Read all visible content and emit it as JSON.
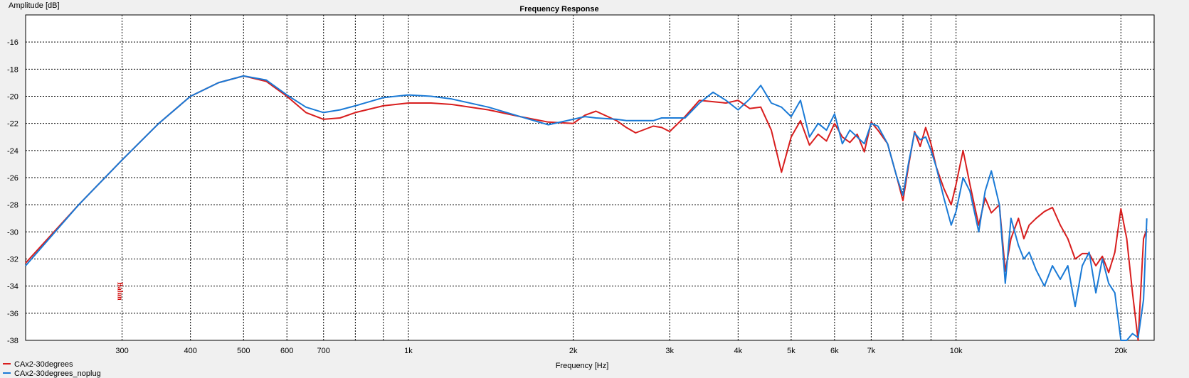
{
  "chart_data": {
    "type": "line",
    "title": "Frequency Response",
    "xlabel": "Frequency [Hz]",
    "ylabel": "Amplitude [dB]",
    "xscale": "log",
    "xlim": [
      200,
      23000
    ],
    "ylim": [
      -38,
      -14
    ],
    "grid": true,
    "legend": "bottom-left",
    "colors": {
      "background": "#f0f0f0",
      "plot_bg": "#ffffff",
      "grid": "#000000"
    },
    "x_ticks": [
      {
        "value": 300,
        "label": "300"
      },
      {
        "value": 400,
        "label": "400"
      },
      {
        "value": 500,
        "label": "500"
      },
      {
        "value": 600,
        "label": "600"
      },
      {
        "value": 700,
        "label": "700"
      },
      {
        "value": 1000,
        "label": "1k"
      },
      {
        "value": 2000,
        "label": "2k"
      },
      {
        "value": 3000,
        "label": "3k"
      },
      {
        "value": 4000,
        "label": "4k"
      },
      {
        "value": 5000,
        "label": "5k"
      },
      {
        "value": 6000,
        "label": "6k"
      },
      {
        "value": 7000,
        "label": "7k"
      },
      {
        "value": 10000,
        "label": "10k"
      },
      {
        "value": 20000,
        "label": "20k"
      }
    ],
    "x_minor": [
      800,
      900,
      8000,
      9000
    ],
    "y_ticks": [
      -16,
      -18,
      -20,
      -22,
      -24,
      -26,
      -28,
      -30,
      -32,
      -34,
      -36,
      -38
    ],
    "annotations": [
      {
        "x": 300,
        "text": "Balun"
      }
    ],
    "series": [
      {
        "name": "CAx2-30degrees",
        "color": "#d81e1e",
        "x": [
          200,
          250,
          300,
          350,
          400,
          450,
          500,
          550,
          600,
          650,
          700,
          750,
          800,
          900,
          1000,
          1100,
          1200,
          1400,
          1600,
          1800,
          2000,
          2100,
          2200,
          2400,
          2500,
          2600,
          2800,
          2900,
          3000,
          3200,
          3400,
          3600,
          3800,
          4000,
          4200,
          4400,
          4600,
          4800,
          5000,
          5200,
          5400,
          5600,
          5800,
          6000,
          6200,
          6400,
          6600,
          6800,
          7000,
          7200,
          7500,
          7800,
          8000,
          8200,
          8400,
          8600,
          8800,
          9000,
          9200,
          9500,
          9800,
          10000,
          10300,
          10600,
          11000,
          11300,
          11600,
          12000,
          12300,
          12600,
          13000,
          13300,
          13600,
          14000,
          14500,
          15000,
          15500,
          16000,
          16500,
          17000,
          17500,
          18000,
          18500,
          19000,
          19500,
          20000,
          20500,
          21000,
          21500,
          22000,
          22300
        ],
        "y": [
          -32.3,
          -28.0,
          -24.7,
          -22.0,
          -20.0,
          -19.0,
          -18.5,
          -18.9,
          -20.0,
          -21.2,
          -21.7,
          -21.6,
          -21.2,
          -20.7,
          -20.5,
          -20.5,
          -20.6,
          -21.0,
          -21.5,
          -21.9,
          -22.0,
          -21.4,
          -21.1,
          -21.8,
          -22.3,
          -22.7,
          -22.2,
          -22.3,
          -22.6,
          -21.5,
          -20.3,
          -20.4,
          -20.5,
          -20.3,
          -20.9,
          -20.8,
          -22.5,
          -25.6,
          -23.0,
          -21.8,
          -23.6,
          -22.8,
          -23.3,
          -22.0,
          -23.0,
          -23.4,
          -22.8,
          -24.1,
          -21.9,
          -22.5,
          -23.5,
          -26.0,
          -27.7,
          -25.0,
          -22.6,
          -23.7,
          -22.3,
          -23.5,
          -25.2,
          -26.8,
          -28.0,
          -26.5,
          -24.0,
          -26.5,
          -29.5,
          -27.5,
          -28.6,
          -28.0,
          -32.9,
          -30.5,
          -29.0,
          -30.5,
          -29.5,
          -29.0,
          -28.5,
          -28.2,
          -29.5,
          -30.5,
          -32.0,
          -31.6,
          -31.6,
          -32.5,
          -31.8,
          -33.0,
          -31.5,
          -28.3,
          -30.5,
          -34.5,
          -38.0,
          -30.5,
          -29.8
        ],
        "show_line": true
      },
      {
        "name": "CAx2-30degrees_noplug",
        "color": "#1a7ad6",
        "x": [
          200,
          250,
          300,
          350,
          400,
          450,
          500,
          550,
          600,
          650,
          700,
          750,
          800,
          900,
          1000,
          1100,
          1200,
          1400,
          1600,
          1800,
          2000,
          2100,
          2200,
          2400,
          2500,
          2600,
          2800,
          2900,
          3000,
          3200,
          3400,
          3600,
          3800,
          4000,
          4200,
          4400,
          4600,
          4800,
          5000,
          5200,
          5400,
          5600,
          5800,
          6000,
          6200,
          6400,
          6600,
          6800,
          7000,
          7200,
          7500,
          7800,
          8000,
          8200,
          8400,
          8600,
          8800,
          9000,
          9200,
          9500,
          9800,
          10000,
          10300,
          10600,
          11000,
          11300,
          11600,
          12000,
          12300,
          12600,
          13000,
          13300,
          13600,
          14000,
          14500,
          15000,
          15500,
          16000,
          16500,
          17000,
          17500,
          18000,
          18500,
          19000,
          19500,
          20000,
          20500,
          21000,
          21500,
          22000,
          22300
        ],
        "y": [
          -32.5,
          -28.0,
          -24.7,
          -22.0,
          -20.0,
          -19.0,
          -18.5,
          -18.8,
          -19.9,
          -20.8,
          -21.2,
          -21.0,
          -20.7,
          -20.1,
          -19.9,
          -20.0,
          -20.2,
          -20.8,
          -21.5,
          -22.1,
          -21.7,
          -21.5,
          -21.6,
          -21.7,
          -21.8,
          -21.8,
          -21.8,
          -21.6,
          -21.6,
          -21.6,
          -20.5,
          -19.7,
          -20.3,
          -21.0,
          -20.2,
          -19.2,
          -20.5,
          -20.8,
          -21.5,
          -20.3,
          -23.0,
          -22.0,
          -22.5,
          -21.3,
          -23.5,
          -22.5,
          -23.0,
          -23.5,
          -22.0,
          -22.2,
          -23.5,
          -26.0,
          -27.3,
          -24.8,
          -22.7,
          -23.2,
          -23.0,
          -24.0,
          -25.2,
          -27.5,
          -29.5,
          -28.5,
          -26.0,
          -27.0,
          -30.0,
          -27.0,
          -25.5,
          -28.0,
          -33.8,
          -29.0,
          -31.0,
          -32.0,
          -31.5,
          -32.8,
          -34.0,
          -32.5,
          -33.5,
          -32.5,
          -35.5,
          -32.5,
          -31.5,
          -34.5,
          -32.0,
          -33.8,
          -34.5,
          -38.0,
          -38.0,
          -37.5,
          -37.8,
          -35.0,
          -29.0
        ],
        "show_line": true
      }
    ]
  }
}
